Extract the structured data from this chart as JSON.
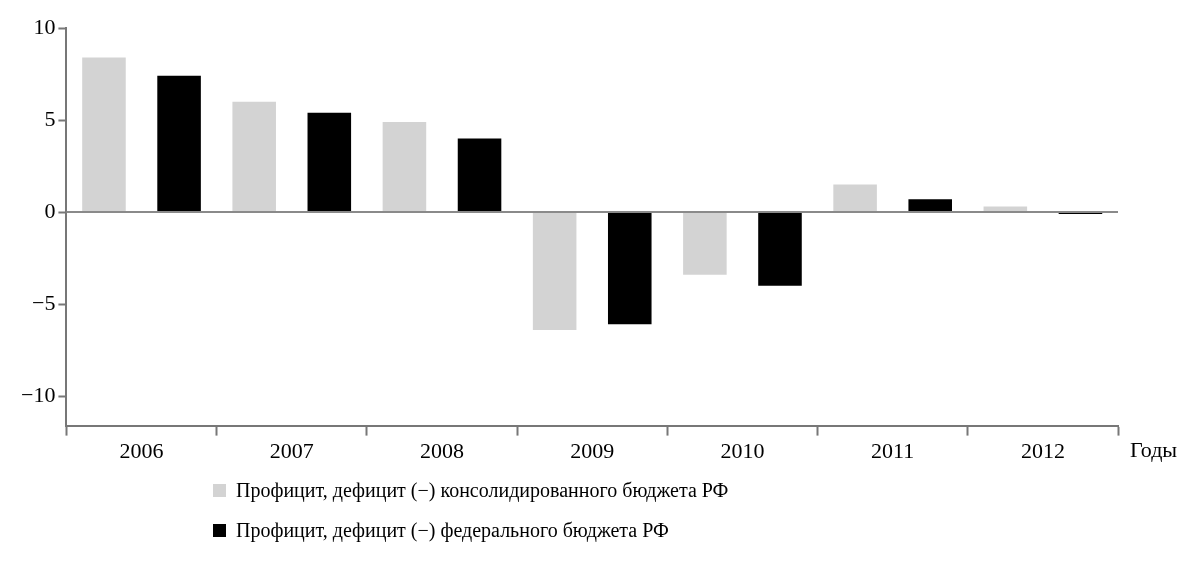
{
  "chart_data": {
    "type": "bar",
    "xlabel": "Годы",
    "categories": [
      "2006",
      "2007",
      "2008",
      "2009",
      "2010",
      "2011",
      "2012"
    ],
    "series": [
      {
        "name": "Профицит, дефицит (−) консолидированного бюджета РФ",
        "color": "#d3d3d3",
        "values": [
          8.4,
          6.0,
          4.9,
          -6.4,
          -3.4,
          1.5,
          0.3
        ]
      },
      {
        "name": "Профицит, дефицит (−) федерального бюджета РФ",
        "color": "#000000",
        "values": [
          7.4,
          5.4,
          4.0,
          -6.1,
          -4.0,
          0.7,
          -0.1
        ]
      }
    ],
    "ylim": [
      -11.6,
      10
    ],
    "yticks": [
      {
        "value": 10,
        "label": "10"
      },
      {
        "value": 5,
        "label": "5"
      },
      {
        "value": 0,
        "label": "0"
      },
      {
        "value": -5,
        "label": "−5"
      },
      {
        "value": -10,
        "label": "−10"
      }
    ],
    "ref_lines": [
      {
        "axis": "y",
        "value": 0,
        "color": "#8a8a8a"
      }
    ],
    "grid": false,
    "legend": "bottom"
  }
}
